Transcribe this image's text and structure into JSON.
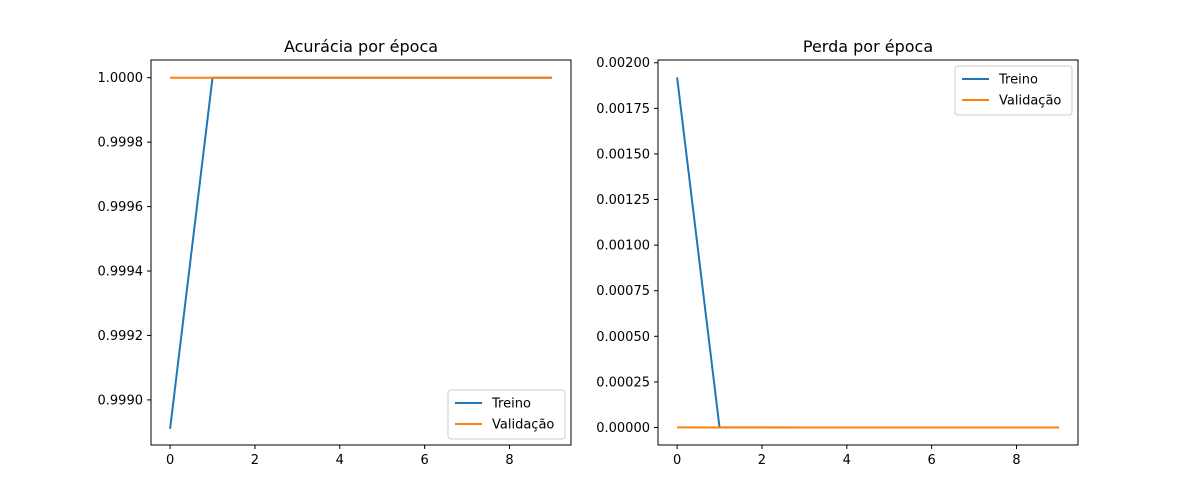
{
  "chart_data": [
    {
      "type": "line",
      "title": "Acurácia por época",
      "xlabel": "",
      "ylabel": "",
      "xlim": [
        -0.45,
        9.45
      ],
      "ylim": [
        0.99886,
        1.000055
      ],
      "x_ticks": [
        0,
        2,
        4,
        6,
        8
      ],
      "y_ticks": [
        0.999,
        0.9992,
        0.9994,
        0.9996,
        0.9998,
        1.0
      ],
      "y_tick_decimals": 4,
      "legend_position": "lower-right",
      "grid": false,
      "x": [
        0,
        1,
        2,
        3,
        4,
        5,
        6,
        7,
        8,
        9
      ],
      "series": [
        {
          "name": "Treino",
          "color": "#1f77b4",
          "values": [
            0.99891,
            1.0,
            1.0,
            1.0,
            1.0,
            1.0,
            1.0,
            1.0,
            1.0,
            1.0
          ]
        },
        {
          "name": "Validação",
          "color": "#ff7f0e",
          "values": [
            1.0,
            1.0,
            1.0,
            1.0,
            1.0,
            1.0,
            1.0,
            1.0,
            1.0,
            1.0
          ]
        }
      ]
    },
    {
      "type": "line",
      "title": "Perda por época",
      "xlabel": "",
      "ylabel": "",
      "xlim": [
        -0.45,
        9.45
      ],
      "ylim": [
        -9.6e-05,
        0.002015
      ],
      "x_ticks": [
        0,
        2,
        4,
        6,
        8
      ],
      "y_ticks": [
        0.0,
        0.00025,
        0.0005,
        0.00075,
        0.001,
        0.00125,
        0.0015,
        0.00175,
        0.002
      ],
      "y_tick_decimals": 5,
      "legend_position": "upper-right",
      "grid": false,
      "x": [
        0,
        1,
        2,
        3,
        4,
        5,
        6,
        7,
        8,
        9
      ],
      "series": [
        {
          "name": "Treino",
          "color": "#1f77b4",
          "values": [
            0.00192,
            5e-07,
            4e-07,
            3e-07,
            3e-07,
            2e-07,
            2e-07,
            2e-07,
            2e-07,
            2e-07
          ]
        },
        {
          "name": "Validação",
          "color": "#ff7f0e",
          "values": [
            4e-07,
            3e-07,
            3e-07,
            2e-07,
            2e-07,
            2e-07,
            2e-07,
            2e-07,
            2e-07,
            2e-07
          ]
        }
      ]
    }
  ]
}
